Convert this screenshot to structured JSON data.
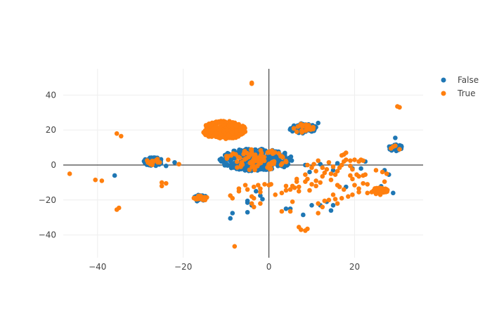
{
  "chart_data": {
    "type": "scatter",
    "title": "",
    "xlabel": "",
    "ylabel": "",
    "xlim": [
      -48,
      36
    ],
    "ylim": [
      -53,
      55
    ],
    "x_ticks": [
      -40,
      -20,
      0,
      20
    ],
    "y_ticks": [
      -40,
      -20,
      0,
      20,
      40
    ],
    "x_tick_labels": [
      "−40",
      "−20",
      "0",
      "20"
    ],
    "y_tick_labels": [
      "−40",
      "−20",
      "0",
      "20",
      "40"
    ],
    "grid": true,
    "zero_lines": true,
    "legend_position": "top-right",
    "series": [
      {
        "name": "False",
        "color": "#1f77b4",
        "clusters": [
          {
            "cx": -27,
            "cy": 2,
            "rx": 2.2,
            "ry": 2.5,
            "n": 60
          },
          {
            "cx": -3,
            "cy": 3,
            "rx": 8.5,
            "ry": 6.5,
            "n": 260
          },
          {
            "cx": 8,
            "cy": 21,
            "rx": 3.2,
            "ry": 3.0,
            "n": 70
          },
          {
            "cx": -16,
            "cy": -19,
            "rx": 1.7,
            "ry": 2.0,
            "n": 30
          },
          {
            "cx": 29.5,
            "cy": 10,
            "rx": 1.7,
            "ry": 2.0,
            "n": 25
          },
          {
            "cx": 26,
            "cy": -14,
            "rx": 1.6,
            "ry": 2.0,
            "n": 20
          }
        ],
        "points": [
          [
            -36,
            -6
          ],
          [
            -24,
            -0.5
          ],
          [
            -22,
            1.5
          ],
          [
            -8.5,
            -27.5
          ],
          [
            -9,
            -30.5
          ],
          [
            -5,
            -20.5
          ],
          [
            -5,
            -27
          ],
          [
            -5,
            -21.5
          ],
          [
            -4,
            -23
          ],
          [
            -2,
            -17.5
          ],
          [
            -1.5,
            -19.5
          ],
          [
            -3,
            -15
          ],
          [
            4,
            -25
          ],
          [
            5,
            -25
          ],
          [
            8,
            -28.5
          ],
          [
            10,
            -23
          ],
          [
            12,
            -23
          ],
          [
            13.5,
            -21
          ],
          [
            15,
            -23
          ],
          [
            14.5,
            -26
          ],
          [
            11.5,
            24
          ],
          [
            18,
            -12.5
          ],
          [
            19.5,
            -2
          ],
          [
            21.5,
            -2
          ],
          [
            22.5,
            2
          ],
          [
            27,
            -3
          ],
          [
            28,
            -5.5
          ],
          [
            29,
            -16
          ],
          [
            29.5,
            15.5
          ],
          [
            30,
            9.5
          ],
          [
            12,
            0.5
          ],
          [
            15,
            -3
          ],
          [
            8.5,
            0
          ],
          [
            9.5,
            -4
          ],
          [
            16,
            1
          ]
        ]
      },
      {
        "name": "True",
        "color": "#ff7f0e",
        "clusters": [
          {
            "cx": -10.5,
            "cy": 20,
            "rx": 5.2,
            "ry": 5.2,
            "n": 280
          },
          {
            "cx": -3,
            "cy": 3,
            "rx": 7.5,
            "ry": 6.0,
            "n": 90
          },
          {
            "cx": 8,
            "cy": 21,
            "rx": 2.6,
            "ry": 2.6,
            "n": 22
          },
          {
            "cx": -27,
            "cy": 2,
            "rx": 1.6,
            "ry": 2.0,
            "n": 12
          },
          {
            "cx": -16,
            "cy": -19,
            "rx": 1.6,
            "ry": 1.6,
            "n": 25
          },
          {
            "cx": 26,
            "cy": -14.5,
            "rx": 1.8,
            "ry": 1.6,
            "n": 45
          }
        ],
        "points": [
          [
            -46.5,
            -5
          ],
          [
            -40.5,
            -8.5
          ],
          [
            -39,
            -9
          ],
          [
            -35.5,
            18
          ],
          [
            -34.5,
            16.5
          ],
          [
            -35,
            -24.5
          ],
          [
            -35.5,
            -25.5
          ],
          [
            -25,
            -10
          ],
          [
            -24,
            -10.5
          ],
          [
            -25,
            -12
          ],
          [
            -23.5,
            3
          ],
          [
            -21,
            0.5
          ],
          [
            -25.5,
            1.5
          ],
          [
            -9.5,
            5
          ],
          [
            -4,
            47
          ],
          [
            -4,
            46.5
          ],
          [
            -8,
            -46.5
          ],
          [
            -9,
            -17.5
          ],
          [
            -8.5,
            -19
          ],
          [
            -7,
            -15
          ],
          [
            -7,
            -13.5
          ],
          [
            -5.5,
            -11.5
          ],
          [
            -5,
            -14
          ],
          [
            -3.5,
            -12.5
          ],
          [
            -2.5,
            -11.5
          ],
          [
            -2,
            -13.5
          ],
          [
            -1,
            -11
          ],
          [
            0,
            -11.5
          ],
          [
            0.5,
            -11
          ],
          [
            -4,
            -18
          ],
          [
            -3.5,
            -19
          ],
          [
            -4,
            -22
          ],
          [
            -3.5,
            -24
          ],
          [
            -2,
            -22
          ],
          [
            -2,
            -15.5
          ],
          [
            1.5,
            -17
          ],
          [
            3,
            -16
          ],
          [
            4,
            -14.5
          ],
          [
            4,
            -12
          ],
          [
            5,
            -14
          ],
          [
            5.5,
            -12
          ],
          [
            6,
            -13
          ],
          [
            6.5,
            -9.5
          ],
          [
            6.5,
            -8
          ],
          [
            7,
            -12.5
          ],
          [
            7,
            -15
          ],
          [
            8.5,
            -9.5
          ],
          [
            9.5,
            -14.5
          ],
          [
            10,
            -11
          ],
          [
            11,
            -9
          ],
          [
            11,
            -12
          ],
          [
            11.5,
            -22
          ],
          [
            11.5,
            -27.5
          ],
          [
            12.5,
            -24
          ],
          [
            13,
            -20.5
          ],
          [
            14,
            -20
          ],
          [
            15,
            -17
          ],
          [
            15.5,
            -19.5
          ],
          [
            16,
            -22
          ],
          [
            17,
            -19
          ],
          [
            5,
            -26.5
          ],
          [
            7,
            -35.5
          ],
          [
            7.5,
            -37
          ],
          [
            8.5,
            -37.5
          ],
          [
            9,
            -36.5
          ],
          [
            3,
            -26.5
          ],
          [
            5.5,
            -21
          ],
          [
            9,
            0
          ],
          [
            10.5,
            0.5
          ],
          [
            11.5,
            2.5
          ],
          [
            12.5,
            -1.5
          ],
          [
            13.5,
            -2.5
          ],
          [
            14,
            1.5
          ],
          [
            15,
            -1
          ],
          [
            14.5,
            -5
          ],
          [
            15.5,
            -5.5
          ],
          [
            16,
            -3.5
          ],
          [
            16.5,
            -1.5
          ],
          [
            17,
            0
          ],
          [
            17.5,
            2
          ],
          [
            18,
            3
          ],
          [
            19,
            2.5
          ],
          [
            20,
            3
          ],
          [
            21,
            2
          ],
          [
            21.5,
            3
          ],
          [
            22,
            2.5
          ],
          [
            19,
            -0.5
          ],
          [
            19.5,
            -2.5
          ],
          [
            20.5,
            -5.5
          ],
          [
            21,
            -6.5
          ],
          [
            22,
            -6
          ],
          [
            22.5,
            -5.5
          ],
          [
            19,
            -6
          ],
          [
            19.5,
            -8
          ],
          [
            20,
            -11.5
          ],
          [
            21,
            -13.5
          ],
          [
            22,
            -10.5
          ],
          [
            23,
            -11
          ],
          [
            24,
            -15.5
          ],
          [
            25,
            -16.5
          ],
          [
            26,
            -17
          ],
          [
            27,
            -9.5
          ],
          [
            27.5,
            -5
          ],
          [
            25,
            -3
          ],
          [
            26.5,
            -4
          ],
          [
            17.5,
            6
          ],
          [
            18,
            7
          ],
          [
            17,
            5.5
          ],
          [
            12.5,
            -6.5
          ],
          [
            13,
            -4.5
          ],
          [
            14.5,
            -8.5
          ],
          [
            16,
            -11.5
          ],
          [
            16.5,
            -12.5
          ],
          [
            17.5,
            -14
          ],
          [
            18.5,
            -18
          ],
          [
            19.5,
            -17
          ],
          [
            21,
            -15.5
          ],
          [
            23,
            -16
          ],
          [
            10,
            -1.5
          ],
          [
            11,
            -3.5
          ],
          [
            8.5,
            -5.5
          ],
          [
            9,
            -8
          ],
          [
            12,
            -10
          ],
          [
            28.5,
            9.5
          ],
          [
            29.5,
            11
          ],
          [
            30.5,
            33
          ],
          [
            30,
            33.5
          ],
          [
            29,
            10.5
          ],
          [
            30.5,
            9
          ]
        ]
      }
    ]
  }
}
